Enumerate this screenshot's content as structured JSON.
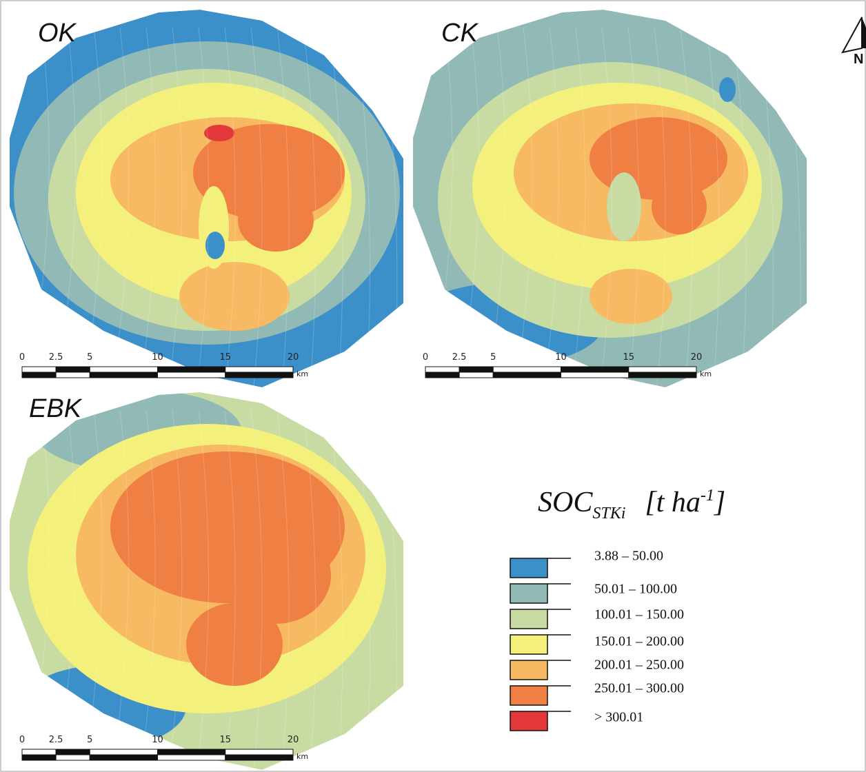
{
  "panels": [
    {
      "label": "OK",
      "scale": {
        "ticks": [
          0,
          2.5,
          5,
          10,
          15,
          20
        ],
        "unit": "km"
      }
    },
    {
      "label": "CK",
      "scale": {
        "ticks": [
          0,
          2.5,
          5,
          10,
          15,
          20
        ],
        "unit": "km"
      }
    },
    {
      "label": "EBK",
      "scale": {
        "ticks": [
          0,
          2.5,
          5,
          10,
          15,
          20
        ],
        "unit": "km"
      }
    }
  ],
  "north": "N",
  "legend": {
    "title": {
      "main": "SOC",
      "sub": "STKi",
      "unit": "[t ha",
      "sup": "-1",
      "close": "]"
    },
    "classes": [
      {
        "label": "3.88 – 50.00",
        "color": "#3c90c9"
      },
      {
        "label": "50.01 – 100.00",
        "color": "#91b9b5"
      },
      {
        "label": "100.01 – 150.00",
        "color": "#c8dba2"
      },
      {
        "label": "150.01 – 200.00",
        "color": "#f3f07c"
      },
      {
        "label": "200.01 – 250.00",
        "color": "#f7b962"
      },
      {
        "label": "250.01 – 300.00",
        "color": "#ef7f43"
      },
      {
        "label": "> 300.01",
        "color": "#e2383a"
      }
    ]
  }
}
